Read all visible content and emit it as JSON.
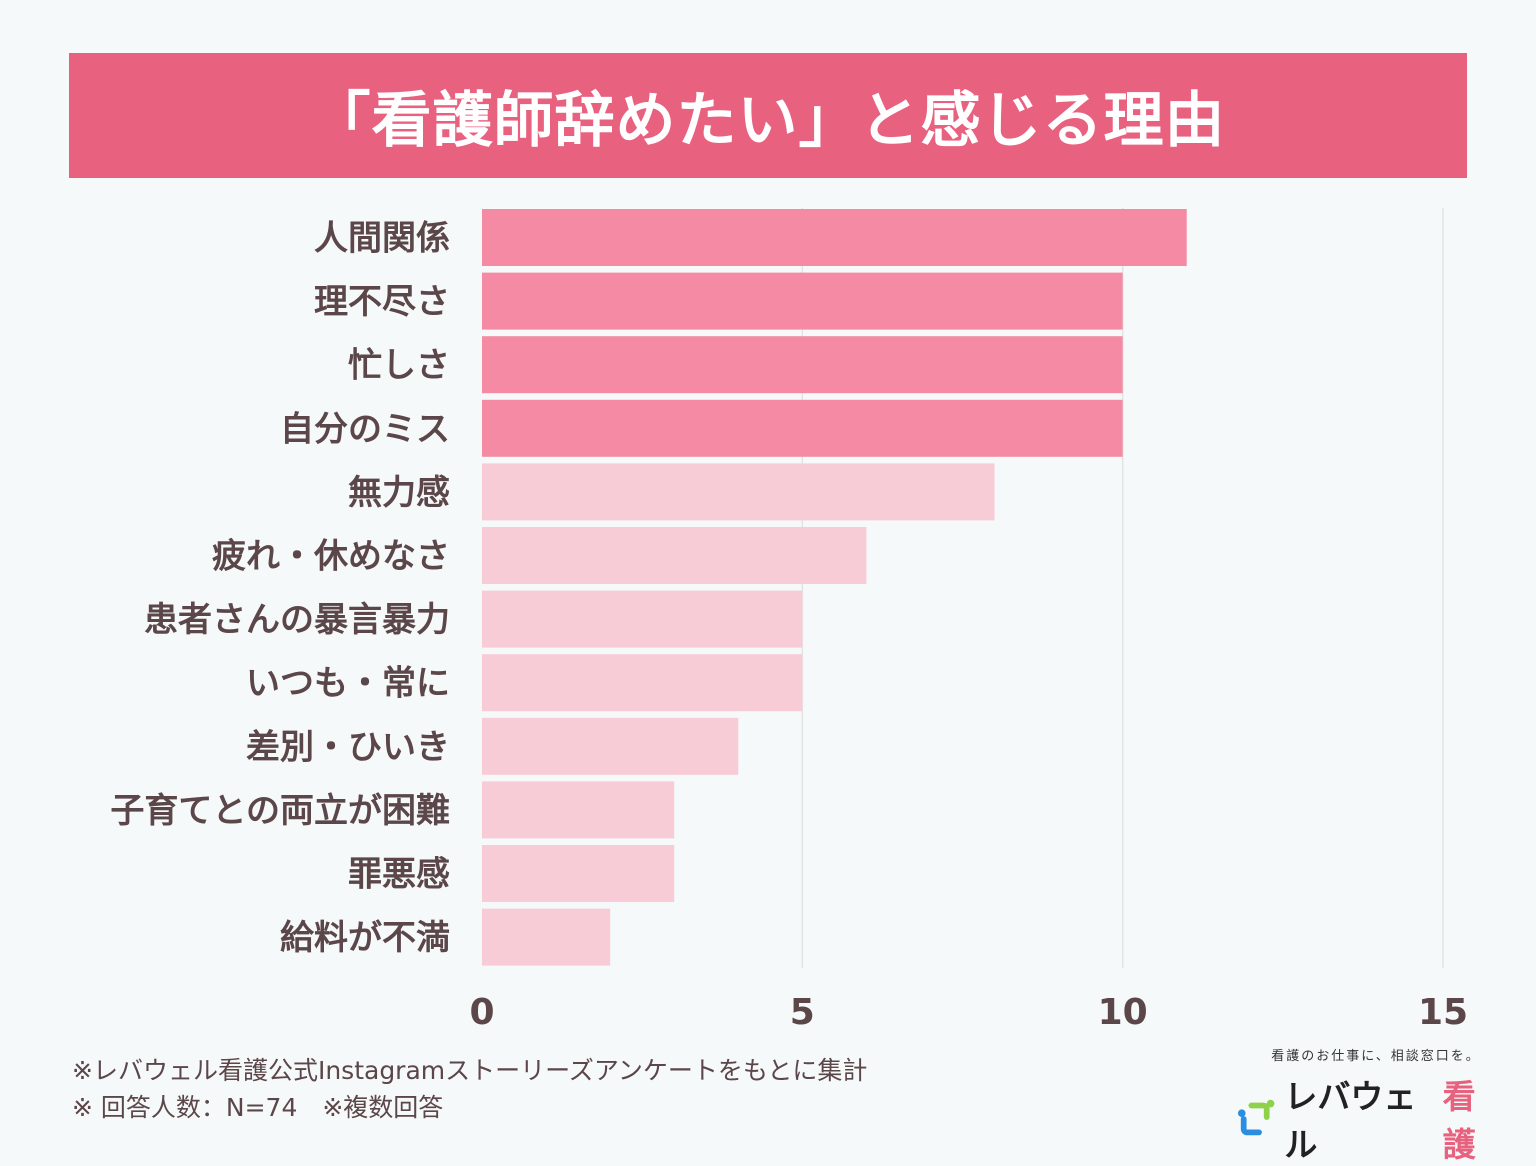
{
  "chart_data": {
    "type": "bar",
    "orientation": "horizontal",
    "title": "「看護師辞めたい」と感じる理由",
    "categories": [
      "人間関係",
      "理不尽さ",
      "忙しさ",
      "自分のミス",
      "無力感",
      "疲れ・休めなさ",
      "患者さんの暴言暴力",
      "いつも・常に",
      "差別・ひいき",
      "子育てとの両立が困難",
      "罪悪感",
      "給料が不満"
    ],
    "values": [
      11,
      10,
      10,
      10,
      8,
      6,
      5,
      5,
      4,
      3,
      3,
      2
    ],
    "xlim": [
      0,
      15
    ],
    "xticks": [
      0,
      5,
      10,
      15
    ],
    "grid": "vertical",
    "colors": {
      "highlight": "#f48aa3",
      "normal": "#f8ccd6",
      "title_bg": "#e8617f"
    },
    "highlight_count": 4
  },
  "notes": {
    "line1": "※レバウェル看護公式Instagramストーリーズアンケートをもとに集計",
    "line2": "※ 回答人数：N=74　※複数回答"
  },
  "logo": {
    "tagline": "看護のお仕事に、相談窓口を。",
    "brand": "レバウェル",
    "brand_accent": "看護"
  }
}
